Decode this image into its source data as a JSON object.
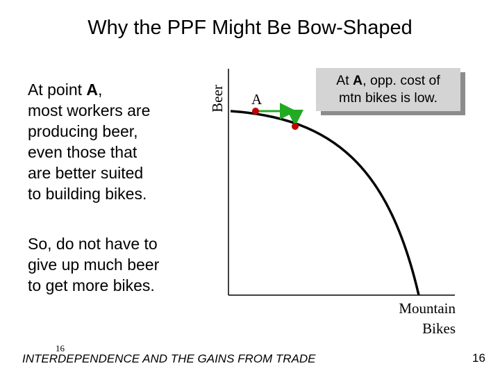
{
  "title": "Why the PPF Might Be Bow-Shaped",
  "left_text": {
    "para1": {
      "before": "At point ",
      "point": "A",
      "after": ",",
      "line2": "most workers are",
      "line3": "producing beer,",
      "line4": "even those that",
      "line5": "are better suited",
      "line6": "to building bikes."
    },
    "para2": {
      "line1": "So, do not have to",
      "line2": "give up much beer",
      "line3": "to get more bikes."
    }
  },
  "graph": {
    "y_axis_label": "Beer",
    "x_axis_label_line1": "Mountain",
    "x_axis_label_line2": "Bikes",
    "point_label": "A",
    "curve_color": "#000000",
    "point_color": "#c00000",
    "arrow_color": "#22aa22"
  },
  "callout": {
    "line1_before": "At ",
    "line1_point": "A",
    "line1_after": ", opp. cost of",
    "line2": "mtn bikes is low."
  },
  "footer": {
    "small_number": "16",
    "text": "INTERDEPENDENCE AND THE GAINS FROM TRADE",
    "slide_number": "16"
  }
}
